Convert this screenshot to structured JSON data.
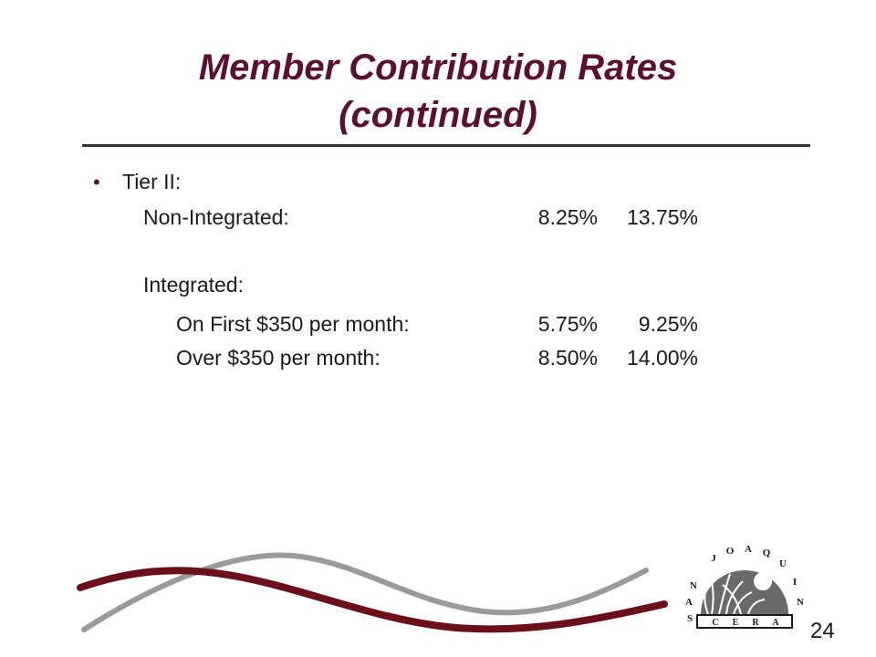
{
  "slide": {
    "title_line1": "Member Contribution Rates",
    "title_line2": "(continued)",
    "bullet": "Tier II:",
    "rows": [
      {
        "label": "Non-Integrated:",
        "rate1": "8.25%",
        "rate2": "13.75%"
      },
      {
        "label": "Integrated:"
      },
      {
        "label": "On First $350 per month:",
        "rate1": "5.75%",
        "rate2": "9.25%"
      },
      {
        "label": "Over $350 per month:",
        "rate1": "8.50%",
        "rate2": "14.00%"
      }
    ],
    "page_number": "24"
  },
  "logo": {
    "arc_letters": [
      "S",
      "A",
      "N",
      "J",
      "O",
      "A",
      "Q",
      "U",
      "I",
      "N"
    ],
    "banner_letters": [
      "C",
      "E",
      "R",
      "A"
    ]
  },
  "colors": {
    "title": "#5a1030",
    "wave_dark": "#6b0f1a",
    "wave_gray": "#9a9a9a",
    "rule": "#333333"
  }
}
